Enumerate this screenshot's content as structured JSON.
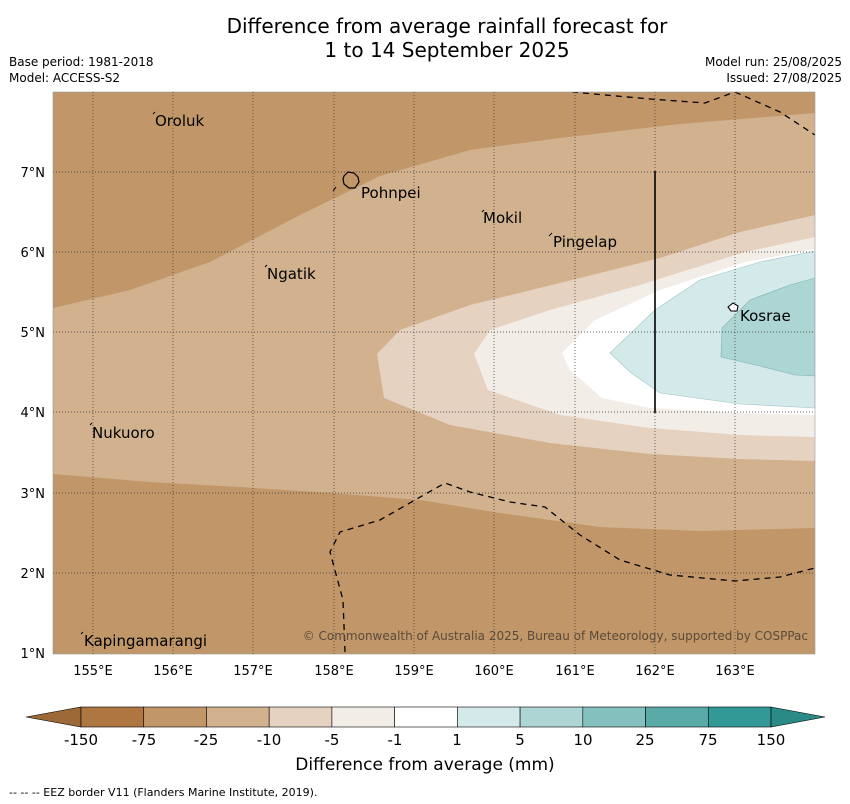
{
  "title": {
    "line1": "Difference from average rainfall forecast for",
    "line2": "1 to 14 September 2025"
  },
  "meta": {
    "base_period": "Base period: 1981-2018",
    "model": "Model: ACCESS-S2",
    "model_run": "Model run: 25/08/2025",
    "issued": "Issued: 27/08/2025"
  },
  "map": {
    "lon_range": [
      154.5,
      164.0
    ],
    "lat_range": [
      1.0,
      8.0
    ],
    "lon_ticks": [
      "155°E",
      "156°E",
      "157°E",
      "158°E",
      "159°E",
      "160°E",
      "161°E",
      "162°E",
      "163°E"
    ],
    "lat_ticks": [
      "1°N",
      "2°N",
      "3°N",
      "4°N",
      "5°N",
      "6°N",
      "7°N"
    ],
    "places": [
      {
        "name": "Oroluk",
        "lon": 155.75,
        "lat": 7.6
      },
      {
        "name": "Pohnpei",
        "lon": 158.3,
        "lat": 6.88
      },
      {
        "name": "Mokil",
        "lon": 159.85,
        "lat": 6.4
      },
      {
        "name": "Pingelap",
        "lon": 160.75,
        "lat": 6.18
      },
      {
        "name": "Ngatik",
        "lon": 157.18,
        "lat": 5.8
      },
      {
        "name": "Kosrae",
        "lon": 163.0,
        "lat": 5.3
      },
      {
        "name": "Nukuoro",
        "lon": 154.93,
        "lat": 3.83
      },
      {
        "name": "Kapingamarangi",
        "lon": 154.93,
        "lat": 1.23
      }
    ],
    "copyright": "© Commonwealth of Australia 2025, Bureau of Meteorology, supported by COSPPac"
  },
  "colorbar": {
    "ticks": [
      "-150",
      "-75",
      "-25",
      "-10",
      "-5",
      "-1",
      "1",
      "5",
      "10",
      "25",
      "75",
      "150"
    ],
    "colors": [
      "#ae7742",
      "#c19769",
      "#d2b18f",
      "#e6d2c1",
      "#f3ede7",
      "#ffffff",
      "#d4e9e9",
      "#acd5d4",
      "#84c1be",
      "#5aaba8",
      "#339996"
    ],
    "extend_low_color": "#9d6a37",
    "extend_high_color": "#2a8a86",
    "label": "Difference from average (mm)"
  },
  "legend": {
    "eez": "--  --  -- EEZ border V11 (Flanders Marine Institute, 2019)."
  }
}
